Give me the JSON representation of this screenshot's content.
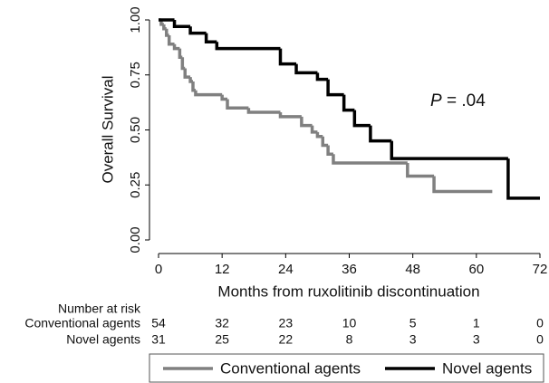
{
  "chart_data": {
    "type": "step",
    "x_label": "Months from ruxolitinib discontinuation",
    "y_label": "Overall Survival",
    "annotation_italic": "P",
    "annotation": "= .04",
    "xlim": [
      0,
      72
    ],
    "xticks": [
      0,
      12,
      24,
      36,
      48,
      60,
      72
    ],
    "ylim": [
      0,
      1
    ],
    "yticks": [
      {
        "value": 0,
        "label": "0.00"
      },
      {
        "value": 0.25,
        "label": "0.25"
      },
      {
        "value": 0.5,
        "label": "0.50"
      },
      {
        "value": 0.75,
        "label": "0.75"
      },
      {
        "value": 1,
        "label": "1.00"
      }
    ],
    "series": [
      {
        "name": "Conventional agents",
        "color": "#808080",
        "x": [
          0,
          0.5,
          1,
          1.5,
          2,
          3,
          4,
          4.5,
          5,
          6,
          6.5,
          7,
          12,
          13,
          17,
          23,
          27,
          29,
          30,
          31,
          32,
          33,
          47,
          52,
          63
        ],
        "values": [
          1,
          0.98,
          0.96,
          0.93,
          0.89,
          0.87,
          0.83,
          0.78,
          0.74,
          0.72,
          0.68,
          0.66,
          0.64,
          0.6,
          0.58,
          0.56,
          0.52,
          0.49,
          0.47,
          0.43,
          0.39,
          0.35,
          0.29,
          0.22,
          0.22
        ]
      },
      {
        "name": "Novel agents",
        "color": "#000000",
        "x": [
          0,
          3,
          6,
          9,
          11,
          23,
          26,
          30,
          32,
          35,
          37,
          40,
          44,
          66,
          72
        ],
        "values": [
          1,
          0.97,
          0.94,
          0.9,
          0.87,
          0.8,
          0.76,
          0.73,
          0.66,
          0.59,
          0.52,
          0.45,
          0.37,
          0.19,
          0.19
        ]
      }
    ],
    "risk_table": {
      "title": "Number at risk",
      "counts": [
        [
          54,
          32,
          23,
          10,
          5,
          1,
          0
        ],
        [
          31,
          25,
          22,
          8,
          3,
          3,
          0
        ]
      ]
    }
  }
}
